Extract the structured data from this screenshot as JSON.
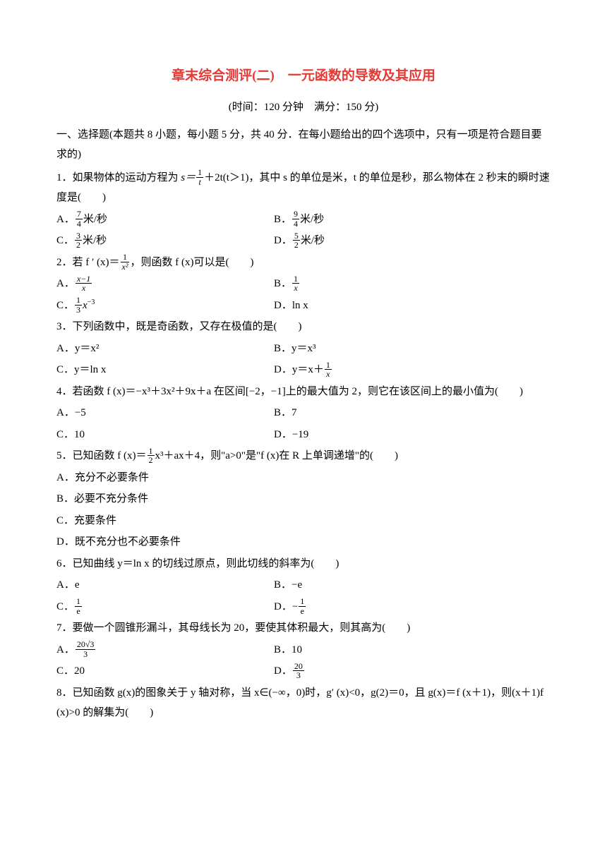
{
  "title_color": "#e53935",
  "title": "章末综合测评(二)　一元函数的导数及其应用",
  "subtitle": "(时间：120 分钟　满分：150 分)",
  "section1_intro": "一、选择题(本题共 8 小题，每小题 5 分，共 40 分．在每小题给出的四个选项中，只有一项是符合题目要求的)",
  "q1_pre": "1．如果物体的运动方程为 ",
  "q1_s": "s＝",
  "q1_frac1_num": "1",
  "q1_frac1_den": "t",
  "q1_post": "＋2t(t＞1)，其中 s 的单位是米，t 的单位是秒，那么物体在 2 秒末的瞬时速度是(　　)",
  "q1_A_pre": "A．",
  "q1_A_num": "7",
  "q1_A_den": "4",
  "q1_A_post": "米/秒",
  "q1_B_pre": "B．",
  "q1_B_num": "9",
  "q1_B_den": "4",
  "q1_B_post": "米/秒",
  "q1_C_pre": "C．",
  "q1_C_num": "3",
  "q1_C_den": "2",
  "q1_C_post": "米/秒",
  "q1_D_pre": "D．",
  "q1_D_num": "5",
  "q1_D_den": "2",
  "q1_D_post": "米/秒",
  "q2_pre": "2．若 f ′ (x)＝",
  "q2_frac_num": "1",
  "q2_frac_den": "x²",
  "q2_post": "，则函数 f (x)可以是(　　)",
  "q2_A_pre": "A．",
  "q2_A_num": "x−1",
  "q2_A_den": "x",
  "q2_B_pre": "B．",
  "q2_B_num": "1",
  "q2_B_den": "x",
  "q2_C_pre": "C．",
  "q2_C_num": "1",
  "q2_C_den": "3",
  "q2_C_post": "x",
  "q2_D": "D．ln x",
  "q3": "3．下列函数中，既是奇函数，又存在极值的是(　　)",
  "q3_A": "A．y＝x²",
  "q3_B": "B．y＝x³",
  "q3_C": "C．y＝ln x",
  "q3_D_pre": "D．y＝x＋",
  "q3_D_num": "1",
  "q3_D_den": "x",
  "q4": "4．若函数 f (x)＝−x³＋3x²＋9x＋a 在区间[−2，−1]上的最大值为 2，则它在该区间上的最小值为(　　)",
  "q4_A": "A．−5",
  "q4_B": "B．7",
  "q4_C": "C．10",
  "q4_D": "D．−19",
  "q5_pre": "5．已知函数 f (x)＝",
  "q5_frac_num": "1",
  "q5_frac_den": "2",
  "q5_post": "x³＋ax＋4，则\"a>0\"是\"f (x)在 R 上单调递增\"的(　　)",
  "q5_A": "A．充分不必要条件",
  "q5_B": "B．必要不充分条件",
  "q5_C": "C．充要条件",
  "q5_D": "D．既不充分也不必要条件",
  "q6": "6．已知曲线 y＝ln x 的切线过原点，则此切线的斜率为(　　)",
  "q6_A": "A．e",
  "q6_B": "B．−e",
  "q6_C_pre": "C．",
  "q6_C_num": "1",
  "q6_C_den": "e",
  "q6_D_pre": "D．−",
  "q6_D_num": "1",
  "q6_D_den": "e",
  "q7": "7．要做一个圆锥形漏斗，其母线长为 20，要使其体积最大，则其高为(　　)",
  "q7_A_pre": "A．",
  "q7_A_num": "20√3",
  "q7_A_den": "3",
  "q7_B": "B．10",
  "q7_C": "C．20",
  "q7_D_pre": "D．",
  "q7_D_num": "20",
  "q7_D_den": "3",
  "q8": "8．已知函数 g(x)的图象关于 y 轴对称，当 x∈(−∞，0)时，g′ (x)<0，g(2)＝0，且 g(x)＝f (x＋1)，则(x＋1)f (x)>0 的解集为(　　)"
}
